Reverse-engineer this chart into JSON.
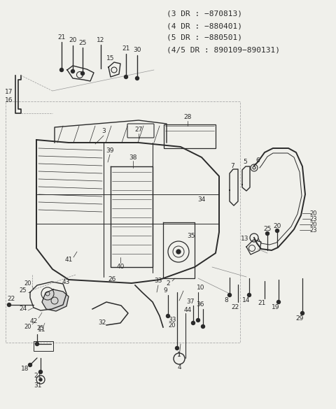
{
  "bg_color": "#f0f0eb",
  "line_color": "#2a2a2a",
  "text_color": "#2a2a2a",
  "title_lines": [
    "(3 DR : −870813)",
    "(4 DR : −880401)",
    "(5 DR : −880501)",
    "(4/5 DR : 890109−890131)"
  ],
  "figsize": [
    4.8,
    5.85
  ],
  "dpi": 100
}
